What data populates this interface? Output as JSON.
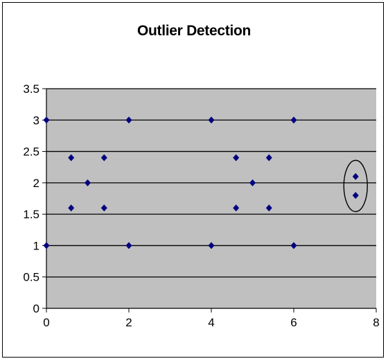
{
  "chart_data": {
    "type": "scatter",
    "title": "Outlier Detection",
    "xlabel": "",
    "ylabel": "",
    "xlim": [
      0,
      8
    ],
    "ylim": [
      0,
      3.5
    ],
    "x_ticks": [
      "0",
      "2",
      "4",
      "6",
      "8"
    ],
    "y_ticks": [
      "0",
      "0.5",
      "1",
      "1.5",
      "2",
      "2.5",
      "3",
      "3.5"
    ],
    "grid": "horizontal",
    "legend": "none",
    "series": [
      {
        "points": [
          {
            "x": 0,
            "y": 3
          },
          {
            "x": 0,
            "y": 1
          },
          {
            "x": 0.6,
            "y": 2.4
          },
          {
            "x": 0.6,
            "y": 1.6
          },
          {
            "x": 1,
            "y": 2
          },
          {
            "x": 1.4,
            "y": 2.4
          },
          {
            "x": 1.4,
            "y": 1.6
          },
          {
            "x": 2,
            "y": 3
          },
          {
            "x": 2,
            "y": 1
          },
          {
            "x": 4,
            "y": 3
          },
          {
            "x": 4,
            "y": 1
          },
          {
            "x": 4.6,
            "y": 2.4
          },
          {
            "x": 4.6,
            "y": 1.6
          },
          {
            "x": 5,
            "y": 2
          },
          {
            "x": 5.4,
            "y": 2.4
          },
          {
            "x": 5.4,
            "y": 1.6
          },
          {
            "x": 6,
            "y": 3
          },
          {
            "x": 6,
            "y": 1
          },
          {
            "x": 7.5,
            "y": 2.1
          },
          {
            "x": 7.5,
            "y": 1.8
          }
        ]
      }
    ],
    "annotation": {
      "type": "ellipse",
      "cx": 7.5,
      "cy": 1.95
    },
    "colors": {
      "plot_area": "#c0c0c0",
      "marker": "#00007f",
      "grid": "#000000"
    }
  }
}
